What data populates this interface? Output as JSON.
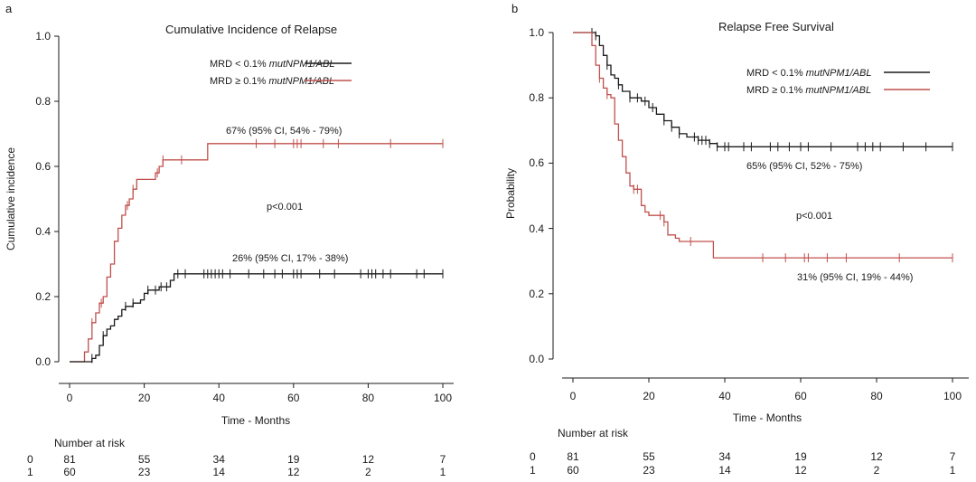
{
  "chart_data": [
    {
      "panel": "a",
      "type": "line",
      "title": "Cumulative Incidence of Relapse",
      "xlabel": "Time - Months",
      "ylabel": "Cumulative incidence",
      "xlim": [
        0,
        100
      ],
      "ylim": [
        0,
        1
      ],
      "xticks": [
        "0",
        "20",
        "40",
        "60",
        "80",
        "100"
      ],
      "yticks": [
        "0.0",
        "0.2",
        "0.4",
        "0.6",
        "0.8",
        "1.0"
      ],
      "legend_position": "top-center",
      "legend": [
        {
          "prefix": "MRD < 0.1% ",
          "italic": "mutNPM1/ABL",
          "color": "#1a1a1a"
        },
        {
          "prefix": "MRD ≥ 0.1% ",
          "italic": "mutNPM1/ABL",
          "color": "#c0504d"
        }
      ],
      "p_value": "p<0.001",
      "annotations": [
        "67% (95% CI, 54% - 79%)",
        "26% (95% CI, 17% - 38%)"
      ],
      "series": [
        {
          "color": "#c0504d",
          "x": [
            0,
            3,
            4,
            5,
            6,
            7,
            8,
            9,
            10,
            11,
            12,
            13,
            14,
            15,
            16,
            17,
            18,
            19,
            20,
            22,
            23,
            24,
            25,
            26,
            37,
            100
          ],
          "y": [
            0,
            0,
            0.03,
            0.07,
            0.12,
            0.15,
            0.18,
            0.2,
            0.26,
            0.3,
            0.37,
            0.41,
            0.45,
            0.48,
            0.5,
            0.53,
            0.56,
            0.56,
            0.56,
            0.56,
            0.58,
            0.6,
            0.62,
            0.62,
            0.67,
            0.67
          ],
          "censor_x": [
            6,
            8.5,
            15.5,
            17,
            23.5,
            25,
            30,
            50,
            55,
            60,
            61,
            62,
            68,
            72,
            86,
            100
          ]
        },
        {
          "color": "#1a1a1a",
          "x": [
            0,
            5,
            6,
            7,
            8,
            9,
            10,
            11,
            12,
            13,
            14,
            15,
            16,
            17,
            18,
            19,
            20,
            21,
            22,
            23,
            24,
            25,
            27,
            28,
            100
          ],
          "y": [
            0,
            0,
            0.01,
            0.02,
            0.05,
            0.08,
            0.1,
            0.11,
            0.13,
            0.14,
            0.16,
            0.17,
            0.17,
            0.18,
            0.18,
            0.19,
            0.21,
            0.22,
            0.22,
            0.22,
            0.23,
            0.23,
            0.25,
            0.27,
            0.27
          ],
          "censor_x": [
            6,
            9,
            15,
            17,
            21,
            23,
            24.5,
            26,
            29,
            31,
            36,
            37,
            38,
            39,
            40,
            41,
            43,
            48,
            52,
            55,
            57,
            60,
            61,
            62,
            67,
            71,
            78,
            80,
            81,
            82,
            84,
            86,
            93,
            95,
            100
          ]
        }
      ],
      "risk_table": {
        "title": "Number at risk",
        "rows": [
          {
            "group": "0",
            "values": [
              "81",
              "55",
              "34",
              "19",
              "12",
              "7"
            ]
          },
          {
            "group": "1",
            "values": [
              "60",
              "23",
              "14",
              "12",
              "2",
              "1"
            ]
          }
        ]
      }
    },
    {
      "panel": "b",
      "type": "line",
      "title": "Relapse Free Survival",
      "xlabel": "Time - Months",
      "ylabel": "Probability",
      "xlim": [
        0,
        100
      ],
      "ylim": [
        0,
        1
      ],
      "xticks": [
        "0",
        "20",
        "40",
        "60",
        "80",
        "100"
      ],
      "yticks": [
        "0.0",
        "0.2",
        "0.4",
        "0.6",
        "0.8",
        "1.0"
      ],
      "legend_position": "top-right",
      "legend": [
        {
          "prefix": "MRD < 0.1% ",
          "italic": "mutNPM1/ABL",
          "color": "#1a1a1a"
        },
        {
          "prefix": "MRD ≥ 0.1% ",
          "italic": "mutNPM1/ABL",
          "color": "#c0504d"
        }
      ],
      "p_value": "p<0.001",
      "annotations": [
        "65% (95% CI, 52% - 75%)",
        "31% (95% CI, 19% - 44%)"
      ],
      "series": [
        {
          "color": "#1a1a1a",
          "x": [
            0,
            4,
            6,
            7,
            8,
            9,
            10,
            11,
            12,
            13,
            15,
            18,
            20,
            22,
            24,
            26,
            28,
            30,
            33,
            36,
            38,
            100
          ],
          "y": [
            1,
            1,
            0.99,
            0.96,
            0.93,
            0.9,
            0.87,
            0.86,
            0.84,
            0.82,
            0.8,
            0.79,
            0.77,
            0.75,
            0.73,
            0.71,
            0.69,
            0.68,
            0.67,
            0.66,
            0.65,
            0.65
          ],
          "censor_x": [
            5,
            6,
            9,
            12,
            15,
            17,
            19,
            21,
            24,
            26,
            28,
            32,
            33,
            34,
            35,
            36,
            38,
            40,
            41,
            45,
            47,
            52,
            54,
            57,
            60,
            62,
            68,
            75,
            77,
            79,
            81,
            87,
            93,
            100
          ]
        },
        {
          "color": "#c0504d",
          "x": [
            0,
            4,
            5,
            6,
            7,
            8,
            9,
            10,
            11,
            12,
            13,
            14,
            15,
            16,
            17,
            18,
            19,
            20,
            22,
            24,
            25,
            27,
            28,
            30,
            33,
            37,
            100
          ],
          "y": [
            1,
            1,
            0.96,
            0.9,
            0.86,
            0.83,
            0.81,
            0.8,
            0.72,
            0.67,
            0.62,
            0.57,
            0.53,
            0.52,
            0.52,
            0.47,
            0.45,
            0.44,
            0.44,
            0.42,
            0.38,
            0.37,
            0.36,
            0.36,
            0.36,
            0.31,
            0.31
          ],
          "censor_x": [
            7,
            9,
            16,
            17,
            23,
            24,
            31,
            50,
            56,
            61,
            62,
            67,
            72,
            86,
            100
          ]
        }
      ],
      "risk_table": {
        "title": "Number at risk",
        "rows": [
          {
            "group": "0",
            "values": [
              "81",
              "55",
              "34",
              "19",
              "12",
              "7"
            ]
          },
          {
            "group": "1",
            "values": [
              "60",
              "23",
              "14",
              "12",
              "2",
              "1"
            ]
          }
        ]
      }
    }
  ]
}
